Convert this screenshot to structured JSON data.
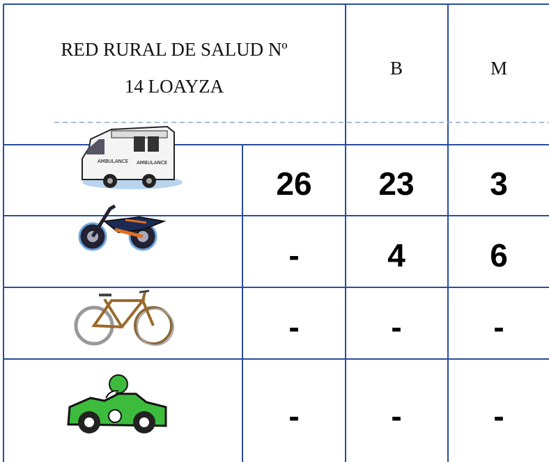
{
  "header": {
    "title_lines": [
      "RED RURAL DE SALUD Nº",
      "14 LOAYZA"
    ],
    "columns": [
      "B",
      "M"
    ]
  },
  "table": {
    "rows": [
      [
        26,
        23,
        3
      ],
      [
        "-",
        4,
        6
      ],
      [
        "-",
        "-",
        "-"
      ],
      [
        "-",
        "-",
        "-"
      ]
    ]
  }
}
